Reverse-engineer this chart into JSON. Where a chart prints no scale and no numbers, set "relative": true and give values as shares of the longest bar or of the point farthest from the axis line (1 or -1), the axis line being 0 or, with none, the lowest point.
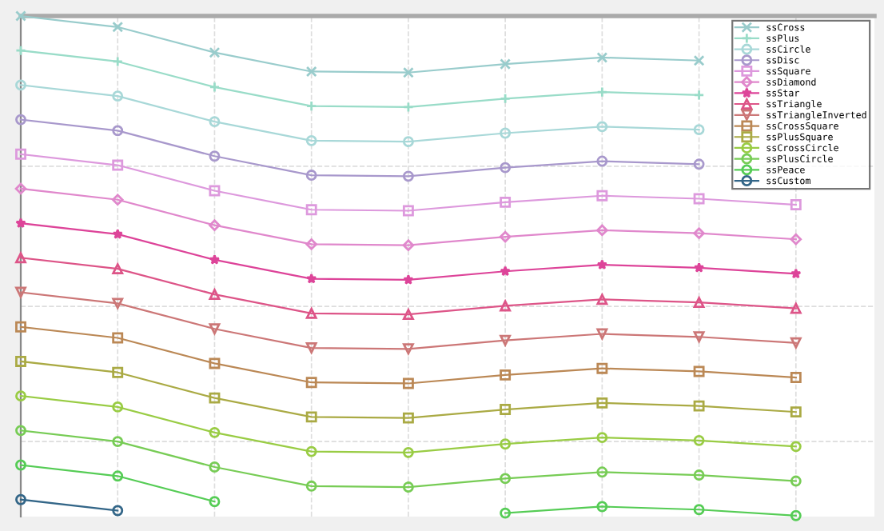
{
  "chart_data": {
    "type": "line",
    "relative": true,
    "categories": [
      null,
      null,
      null,
      null,
      null,
      null,
      null,
      null,
      null
    ],
    "grid": true,
    "legend": "top right",
    "tick_labels": false,
    "line_style": "solid",
    "series": [
      {
        "name": "ssCross",
        "color": "#99cccc",
        "marker": "cross",
        "values": [
          1.0,
          0.978,
          0.927,
          0.889,
          0.887,
          0.904,
          0.917,
          0.911,
          null
        ]
      },
      {
        "name": "ssPlus",
        "color": "#99dcc8",
        "marker": "plus",
        "values": [
          0.931,
          0.909,
          0.858,
          0.82,
          0.818,
          0.835,
          0.848,
          0.842,
          null
        ]
      },
      {
        "name": "ssCircle",
        "color": "#a8d8d8",
        "marker": "circle",
        "values": [
          0.862,
          0.84,
          0.789,
          0.751,
          0.749,
          0.766,
          0.779,
          0.773,
          null
        ]
      },
      {
        "name": "ssDisc",
        "color": "#a898cc",
        "marker": "circle",
        "values": [
          0.793,
          0.771,
          0.72,
          0.682,
          0.68,
          0.697,
          0.71,
          0.704,
          null
        ]
      },
      {
        "name": "ssSquare",
        "color": "#dd99dd",
        "marker": "square",
        "values": [
          0.724,
          0.702,
          0.651,
          0.613,
          0.611,
          0.628,
          0.641,
          0.635,
          0.623
        ]
      },
      {
        "name": "ssDiamond",
        "color": "#e088cc",
        "marker": "diamond",
        "values": [
          0.655,
          0.633,
          0.582,
          0.544,
          0.542,
          0.559,
          0.572,
          0.566,
          0.554
        ]
      },
      {
        "name": "ssStar",
        "color": "#dd4499",
        "marker": "star",
        "values": [
          0.586,
          0.564,
          0.513,
          0.475,
          0.473,
          0.49,
          0.503,
          0.497,
          0.485
        ]
      },
      {
        "name": "ssTriangle",
        "color": "#dd5588",
        "marker": "triangle",
        "values": [
          0.517,
          0.495,
          0.444,
          0.406,
          0.404,
          0.421,
          0.434,
          0.428,
          0.416
        ]
      },
      {
        "name": "ssTriangleInverted",
        "color": "#cc7777",
        "marker": "triangle_down",
        "values": [
          0.448,
          0.426,
          0.375,
          0.337,
          0.335,
          0.352,
          0.365,
          0.359,
          0.347
        ]
      },
      {
        "name": "ssCrossSquare",
        "color": "#bb8855",
        "marker": "square",
        "values": [
          0.379,
          0.357,
          0.306,
          0.268,
          0.266,
          0.283,
          0.296,
          0.29,
          0.278
        ]
      },
      {
        "name": "ssPlusSquare",
        "color": "#aaaa44",
        "marker": "square",
        "values": [
          0.31,
          0.288,
          0.237,
          0.199,
          0.197,
          0.214,
          0.227,
          0.221,
          0.209
        ]
      },
      {
        "name": "ssCrossCircle",
        "color": "#99cc44",
        "marker": "circle",
        "values": [
          0.241,
          0.219,
          0.168,
          0.13,
          0.128,
          0.145,
          0.158,
          0.152,
          0.14
        ]
      },
      {
        "name": "ssPlusCircle",
        "color": "#77cc55",
        "marker": "circle",
        "values": [
          0.172,
          0.15,
          0.099,
          0.061,
          0.059,
          0.076,
          0.089,
          0.083,
          0.071
        ]
      },
      {
        "name": "ssPeace",
        "color": "#55cc55",
        "marker": "circle",
        "values": [
          0.103,
          0.081,
          0.03,
          null,
          null,
          0.007,
          0.02,
          0.014,
          0.002
        ]
      },
      {
        "name": "ssCustom",
        "color": "#336688",
        "marker": "circle",
        "values": [
          0.034,
          0.012,
          null,
          null,
          null,
          null,
          null,
          null,
          null
        ]
      }
    ]
  }
}
